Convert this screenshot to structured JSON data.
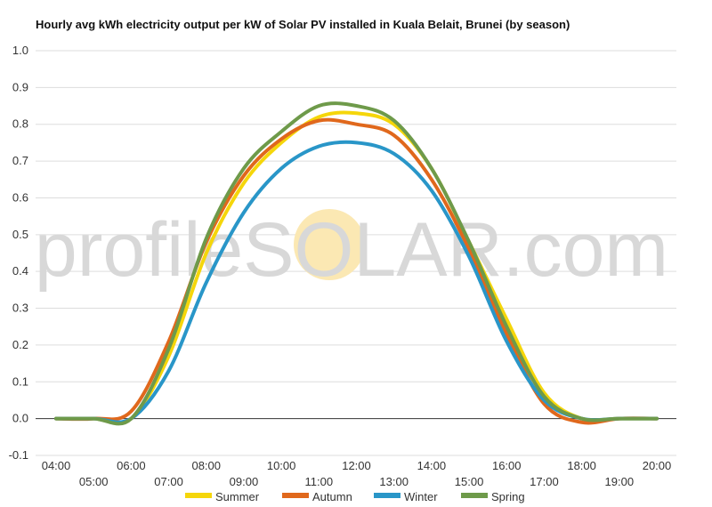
{
  "chart_data": {
    "type": "line",
    "title": "Hourly avg kWh electricity output per kW of Solar PV installed in Kuala Belait, Brunei (by season)",
    "xlabel": "",
    "ylabel": "",
    "ylim": [
      -0.1,
      1.0
    ],
    "y_ticks": [
      "-0.1",
      "0.0",
      "0.1",
      "0.2",
      "0.3",
      "0.4",
      "0.5",
      "0.6",
      "0.7",
      "0.8",
      "0.9",
      "1.0"
    ],
    "y_tick_values": [
      -0.1,
      0.0,
      0.1,
      0.2,
      0.3,
      0.4,
      0.5,
      0.6,
      0.7,
      0.8,
      0.9,
      1.0
    ],
    "x": [
      "04:00",
      "05:00",
      "06:00",
      "07:00",
      "08:00",
      "09:00",
      "10:00",
      "11:00",
      "12:00",
      "13:00",
      "14:00",
      "15:00",
      "16:00",
      "17:00",
      "18:00",
      "19:00",
      "20:00"
    ],
    "grid": true,
    "legend_position": "bottom",
    "series": [
      {
        "name": "Summer",
        "color": "#f5d60a",
        "values": [
          0.0,
          0.0,
          0.0,
          0.17,
          0.45,
          0.64,
          0.75,
          0.82,
          0.83,
          0.8,
          0.68,
          0.48,
          0.27,
          0.07,
          0.0,
          0.0,
          0.0
        ]
      },
      {
        "name": "Autumn",
        "color": "#e0681c",
        "values": [
          0.0,
          0.0,
          0.02,
          0.21,
          0.48,
          0.66,
          0.76,
          0.81,
          0.8,
          0.77,
          0.65,
          0.46,
          0.23,
          0.04,
          -0.01,
          0.0,
          0.0
        ]
      },
      {
        "name": "Winter",
        "color": "#2996c8",
        "values": [
          0.0,
          0.0,
          0.0,
          0.13,
          0.37,
          0.56,
          0.68,
          0.74,
          0.75,
          0.72,
          0.62,
          0.44,
          0.21,
          0.05,
          0.0,
          0.0,
          0.0
        ]
      },
      {
        "name": "Spring",
        "color": "#6e9a4a",
        "values": [
          0.0,
          0.0,
          0.0,
          0.19,
          0.49,
          0.68,
          0.78,
          0.85,
          0.85,
          0.81,
          0.68,
          0.48,
          0.25,
          0.06,
          0.0,
          0.0,
          0.0
        ]
      }
    ]
  },
  "watermark": {
    "text": "profileSOLAR.com",
    "sun_color": "#fbe8b3"
  }
}
